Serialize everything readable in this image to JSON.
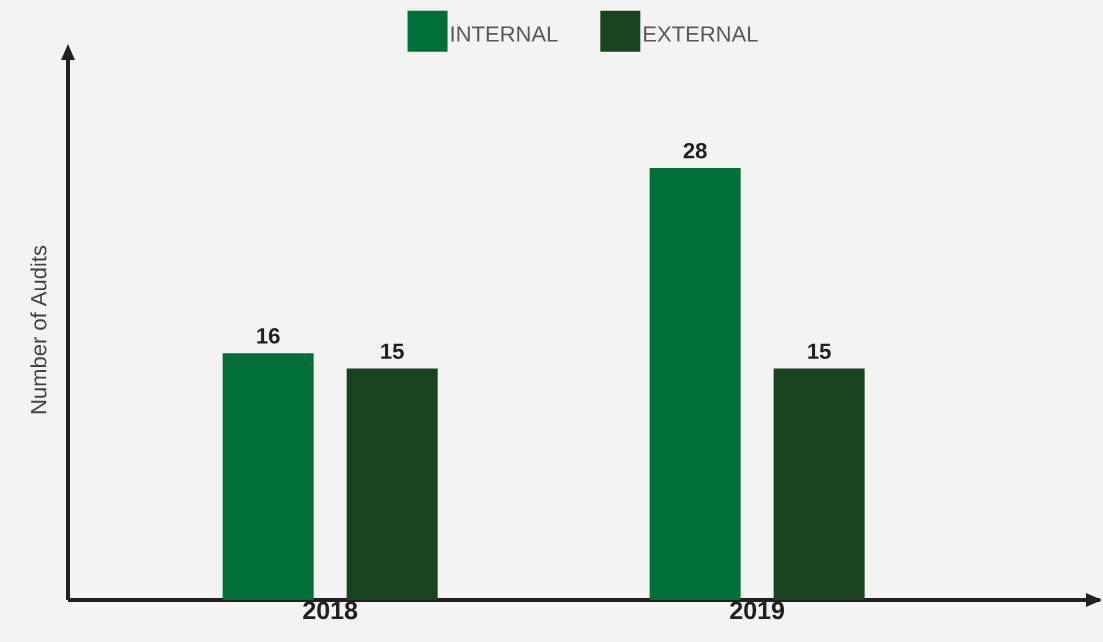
{
  "chart_data": {
    "type": "bar",
    "ylabel": "Number of Audits",
    "categories": [
      "2018",
      "2019"
    ],
    "series": [
      {
        "name": "INTERNAL",
        "color": "#006f3a",
        "values": [
          16,
          28
        ]
      },
      {
        "name": "EXTERNAL",
        "color": "#19431e",
        "values": [
          15,
          15
        ]
      }
    ],
    "data_labels": true,
    "legend": "top",
    "grid": false,
    "tick_labels": "x"
  }
}
